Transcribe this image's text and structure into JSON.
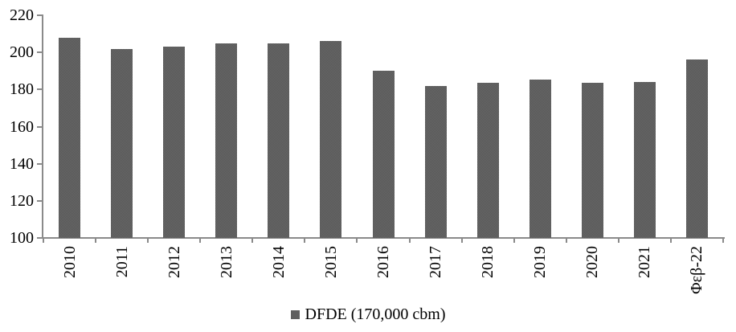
{
  "legend": {
    "position": "bottom"
  },
  "chart_data": {
    "type": "bar",
    "title": "",
    "xlabel": "",
    "ylabel": "",
    "categories": [
      "2010",
      "2011",
      "2012",
      "2013",
      "2014",
      "2015",
      "2016",
      "2017",
      "2018",
      "2019",
      "2020",
      "2021",
      "Φεβ-22"
    ],
    "values": [
      208,
      202,
      203,
      205,
      205,
      206,
      190,
      182,
      183.5,
      185.5,
      183.5,
      184,
      196
    ],
    "series_name": "DFDE (170,000 cbm)",
    "ylim": [
      100,
      220
    ],
    "y_ticks": [
      100,
      120,
      140,
      160,
      180,
      200,
      220
    ],
    "grid": false,
    "legend_position": "bottom",
    "x_label_rotation_deg": 90,
    "bar_color": "#5e5e5e",
    "axis_color": "#8a8a8a",
    "text_color": "#000000"
  }
}
